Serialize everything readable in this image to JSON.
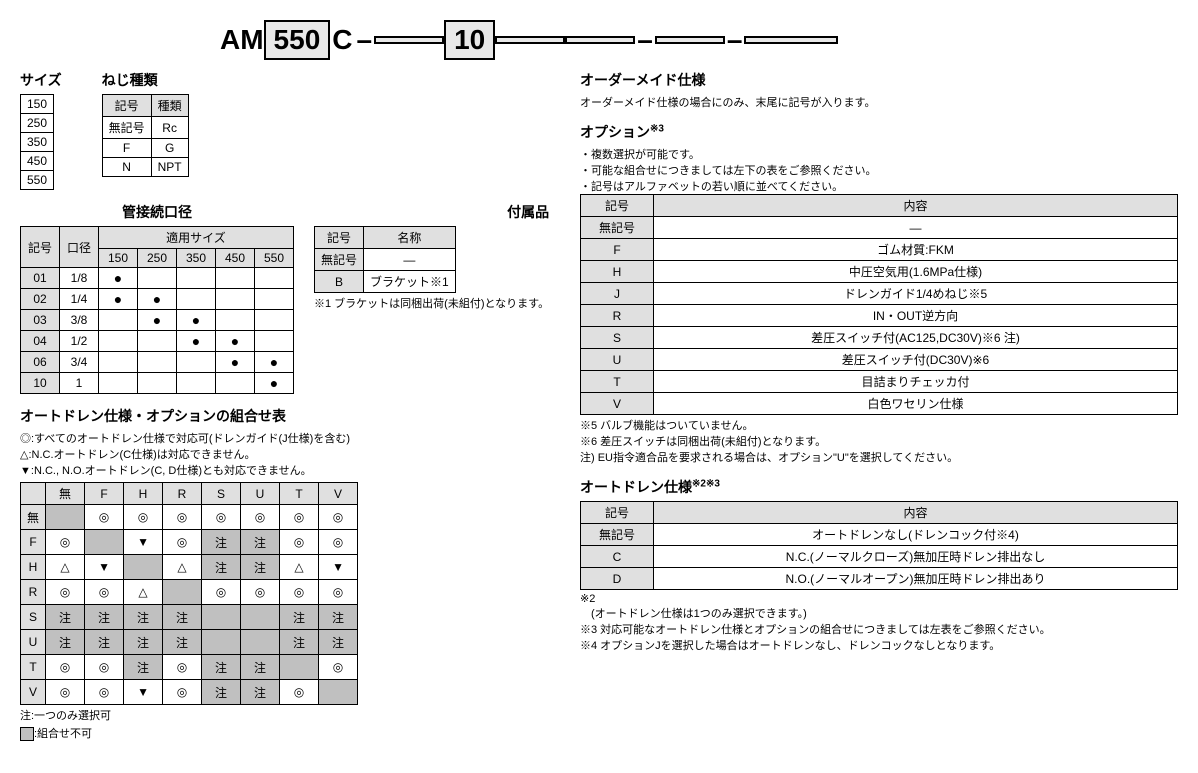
{
  "partNumber": {
    "prefix": "AM",
    "box1": "550",
    "mid": "C",
    "box2": "10"
  },
  "sizeSection": {
    "title": "サイズ",
    "values": [
      "150",
      "250",
      "350",
      "450",
      "550"
    ]
  },
  "threadSection": {
    "title": "ねじ種類",
    "headers": [
      "記号",
      "種類"
    ],
    "rows": [
      [
        "無記号",
        "Rc"
      ],
      [
        "F",
        "G"
      ],
      [
        "N",
        "NPT"
      ]
    ]
  },
  "portSection": {
    "title": "管接続口径",
    "h1": "記号",
    "h2": "口径",
    "h3": "適用サイズ",
    "sizes": [
      "150",
      "250",
      "350",
      "450",
      "550"
    ],
    "rows": [
      {
        "c": "01",
        "b": "1/8",
        "d": [
          1,
          0,
          0,
          0,
          0
        ]
      },
      {
        "c": "02",
        "b": "1/4",
        "d": [
          1,
          1,
          0,
          0,
          0
        ]
      },
      {
        "c": "03",
        "b": "3/8",
        "d": [
          0,
          1,
          1,
          0,
          0
        ]
      },
      {
        "c": "04",
        "b": "1/2",
        "d": [
          0,
          0,
          1,
          1,
          0
        ]
      },
      {
        "c": "06",
        "b": "3/4",
        "d": [
          0,
          0,
          0,
          1,
          1
        ]
      },
      {
        "c": "10",
        "b": "1",
        "d": [
          0,
          0,
          0,
          0,
          1
        ]
      }
    ]
  },
  "accSection": {
    "title": "付属品",
    "headers": [
      "記号",
      "名称"
    ],
    "rows": [
      [
        "無記号",
        "—"
      ],
      [
        "B",
        "ブラケット※1"
      ]
    ],
    "note": "※1 ブラケットは同梱出荷(未組付)となります。"
  },
  "comboSection": {
    "title": "オートドレン仕様・オプションの組合せ表",
    "legend": [
      "◎:すべてのオートドレン仕様で対応可(ドレンガイド(J仕様)を含む)",
      "△:N.C.オートドレン(C仕様)は対応できません。",
      "▼:N.C., N.O.オートドレン(C, D仕様)とも対応できません。"
    ],
    "cols": [
      "無",
      "F",
      "H",
      "R",
      "S",
      "U",
      "T",
      "V"
    ],
    "rows": [
      "無",
      "F",
      "H",
      "R",
      "S",
      "U",
      "T",
      "V"
    ],
    "cells": [
      [
        "/",
        "◎",
        "◎",
        "◎",
        "◎",
        "◎",
        "◎",
        "◎"
      ],
      [
        "◎",
        "/",
        "▼",
        "◎",
        "注",
        "注",
        "◎",
        "◎"
      ],
      [
        "△",
        "▼",
        "/",
        "△",
        "注",
        "注",
        "△",
        "▼"
      ],
      [
        "◎",
        "◎",
        "△",
        "/",
        "◎",
        "◎",
        "◎",
        "◎"
      ],
      [
        "注",
        "注",
        "注",
        "注",
        "/",
        "/",
        "注",
        "注"
      ],
      [
        "注",
        "注",
        "注",
        "注",
        "/",
        "/",
        "注",
        "注"
      ],
      [
        "◎",
        "◎",
        "注",
        "◎",
        "注",
        "注",
        "/",
        "◎"
      ],
      [
        "◎",
        "◎",
        "▼",
        "◎",
        "注",
        "注",
        "◎",
        "/"
      ]
    ],
    "footnote1": "注:一つのみ選択可",
    "footnote2": ":組合せ不可"
  },
  "customSection": {
    "title": "オーダーメイド仕様",
    "note": "オーダーメイド仕様の場合にのみ、末尾に記号が入ります。"
  },
  "optionSection": {
    "title": "オプション",
    "sup": "※3",
    "bullets": [
      "・複数選択が可能です。",
      "・可能な組合せにつきましては左下の表をご参照ください。",
      "・記号はアルファベットの若い順に並べてください。"
    ],
    "headers": [
      "記号",
      "内容"
    ],
    "rows": [
      [
        "無記号",
        "—"
      ],
      [
        "F",
        "ゴム材質:FKM"
      ],
      [
        "H",
        "中圧空気用(1.6MPa仕様)"
      ],
      [
        "J",
        "ドレンガイド1/4めねじ※5"
      ],
      [
        "R",
        "IN・OUT逆方向"
      ],
      [
        "S",
        "差圧スイッチ付(AC125,DC30V)※6 注)"
      ],
      [
        "U",
        "差圧スイッチ付(DC30V)※6"
      ],
      [
        "T",
        "目詰まりチェッカ付"
      ],
      [
        "V",
        "白色ワセリン仕様"
      ]
    ],
    "notes": [
      "※5 バルブ機能はついていません。",
      "※6 差圧スイッチは同梱出荷(未組付)となります。",
      "注) EU指令適合品を要求される場合は、オプション\"U\"を選択してください。"
    ]
  },
  "autoDrainSection": {
    "title": "オートドレン仕様",
    "sup": "※2※3",
    "headers": [
      "記号",
      "内容"
    ],
    "rows": [
      [
        "無記号",
        "オートドレンなし(ドレンコック付※4)"
      ],
      [
        "C",
        "N.C.(ノーマルクローズ)無加圧時ドレン排出なし"
      ],
      [
        "D",
        "N.O.(ノーマルオープン)無加圧時ドレン排出あり"
      ]
    ],
    "notes": [
      "※2",
      "　(オートドレン仕様は1つのみ選択できます。)",
      "※3 対応可能なオートドレン仕様とオプションの組合せにつきましては左表をご参照ください。",
      "※4 オプションJを選択した場合はオートドレンなし、ドレンコックなしとなります。"
    ]
  }
}
